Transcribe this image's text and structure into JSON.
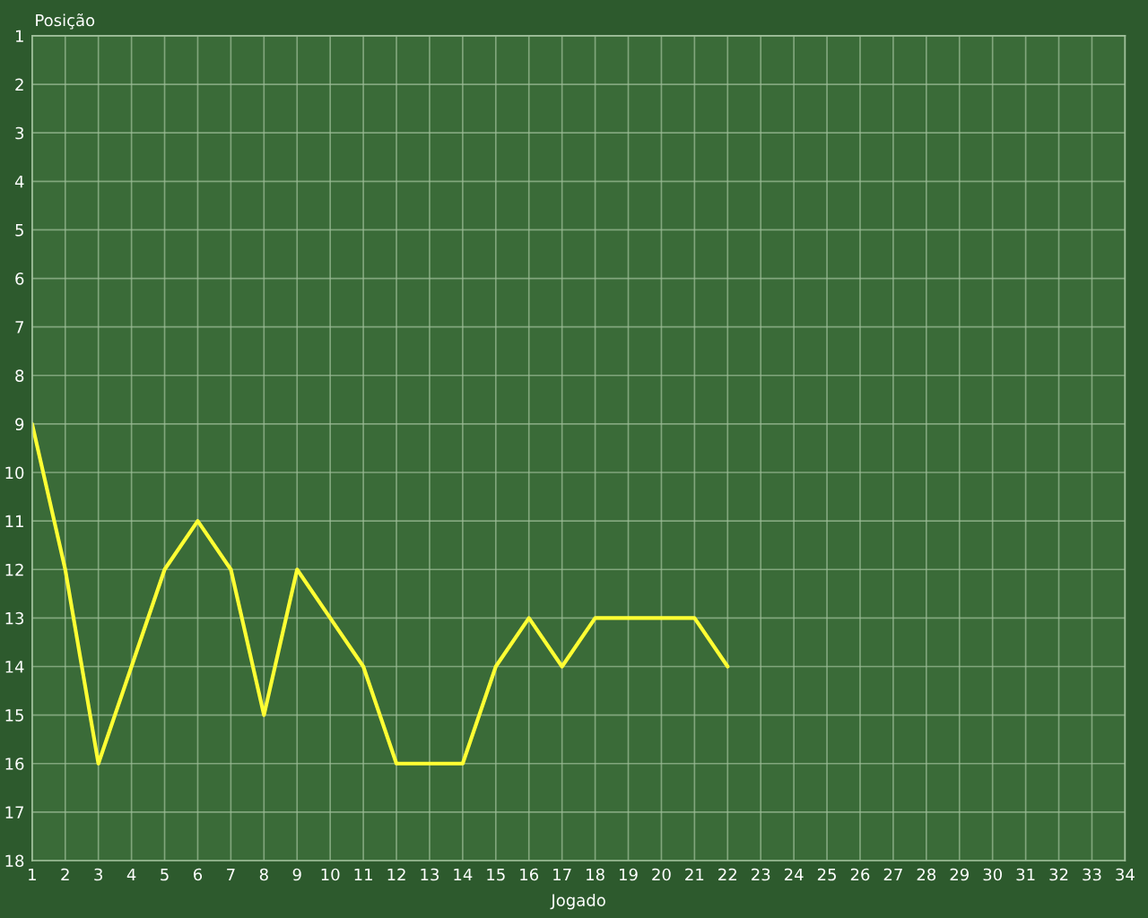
{
  "chart_data": {
    "type": "line",
    "xlabel": "Jogado",
    "ylabel": "Posição",
    "x": [
      1,
      2,
      3,
      4,
      5,
      6,
      7,
      8,
      9,
      10,
      11,
      12,
      13,
      14,
      15,
      16,
      17,
      18,
      19,
      20,
      21,
      22
    ],
    "series": [
      {
        "color": "#ffff33",
        "values": [
          9,
          12,
          16,
          14,
          12,
          11,
          12,
          15,
          12,
          13,
          14,
          16,
          16,
          16,
          14,
          13,
          14,
          13,
          13,
          13,
          13,
          14
        ]
      }
    ],
    "xlim": [
      1,
      34
    ],
    "ylim": [
      18,
      1
    ],
    "xticks": [
      1,
      2,
      3,
      4,
      5,
      6,
      7,
      8,
      9,
      10,
      11,
      12,
      13,
      14,
      15,
      16,
      17,
      18,
      19,
      20,
      21,
      22,
      23,
      24,
      25,
      26,
      27,
      28,
      29,
      30,
      31,
      32,
      33,
      34
    ],
    "yticks": [
      1,
      2,
      3,
      4,
      5,
      6,
      7,
      8,
      9,
      10,
      11,
      12,
      13,
      14,
      15,
      16,
      17,
      18
    ],
    "grid": true
  }
}
